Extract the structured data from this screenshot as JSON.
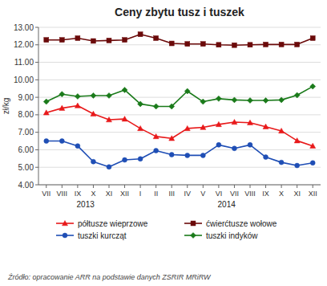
{
  "chart_data": {
    "type": "line",
    "title": "Ceny zbytu tusz i tuszek",
    "y_label": "zł/kg",
    "source": "Źródło: opracowanie ARR na podstawie danych ZSRIR MRiRW",
    "annotations": [
      "2013",
      "2014"
    ],
    "categories": [
      "VII",
      "VIII",
      "IX",
      "X",
      "XI",
      "XII",
      "I",
      "II",
      "III",
      "IV",
      "V",
      "VI",
      "VII",
      "VIII",
      "IX",
      "X",
      "XI",
      "XII"
    ],
    "series": [
      {
        "name": "półtusze wieprzowe",
        "color": "#e8191a",
        "marker": "triangle",
        "values": [
          8.12,
          8.38,
          8.52,
          8.05,
          7.72,
          7.76,
          7.22,
          6.76,
          6.65,
          7.22,
          7.28,
          7.45,
          7.58,
          7.55,
          7.32,
          7.08,
          6.52,
          6.22
        ]
      },
      {
        "name": "ćwierćtusze wołowe",
        "color": "#6b0a0a",
        "marker": "square",
        "values": [
          12.28,
          12.28,
          12.38,
          12.22,
          12.25,
          12.28,
          12.6,
          12.38,
          12.08,
          12.05,
          12.05,
          12.0,
          11.98,
          12.0,
          12.02,
          12.02,
          12.02,
          12.38
        ]
      },
      {
        "name": "tuszki kurcząt",
        "color": "#1f4eb5",
        "marker": "circle",
        "values": [
          6.5,
          6.5,
          6.22,
          5.32,
          5.02,
          5.42,
          5.48,
          5.95,
          5.72,
          5.68,
          5.68,
          6.28,
          6.08,
          6.28,
          5.58,
          5.28,
          5.1,
          5.25
        ]
      },
      {
        "name": "tuszki indyków",
        "color": "#1a7a1a",
        "marker": "diamond",
        "values": [
          8.75,
          9.18,
          9.05,
          9.1,
          9.1,
          9.42,
          8.62,
          8.48,
          8.48,
          9.35,
          8.75,
          8.92,
          8.85,
          8.82,
          8.82,
          8.85,
          9.12,
          9.62
        ]
      }
    ],
    "ylim": [
      4.0,
      13.0
    ],
    "yticks": [
      {
        "value": 4,
        "label": "4.00"
      },
      {
        "value": 5,
        "label": "5.00"
      },
      {
        "value": 6,
        "label": "6.00"
      },
      {
        "value": 7,
        "label": "7.00"
      },
      {
        "value": 8,
        "label": "8.00"
      },
      {
        "value": 9,
        "label": "9.00"
      },
      {
        "value": 10,
        "label": "10.00"
      },
      {
        "value": 11,
        "label": "11.00"
      },
      {
        "value": 12,
        "label": "12.00"
      },
      {
        "value": 13,
        "label": "13.00"
      }
    ],
    "grid": true,
    "legend": "bottom"
  }
}
